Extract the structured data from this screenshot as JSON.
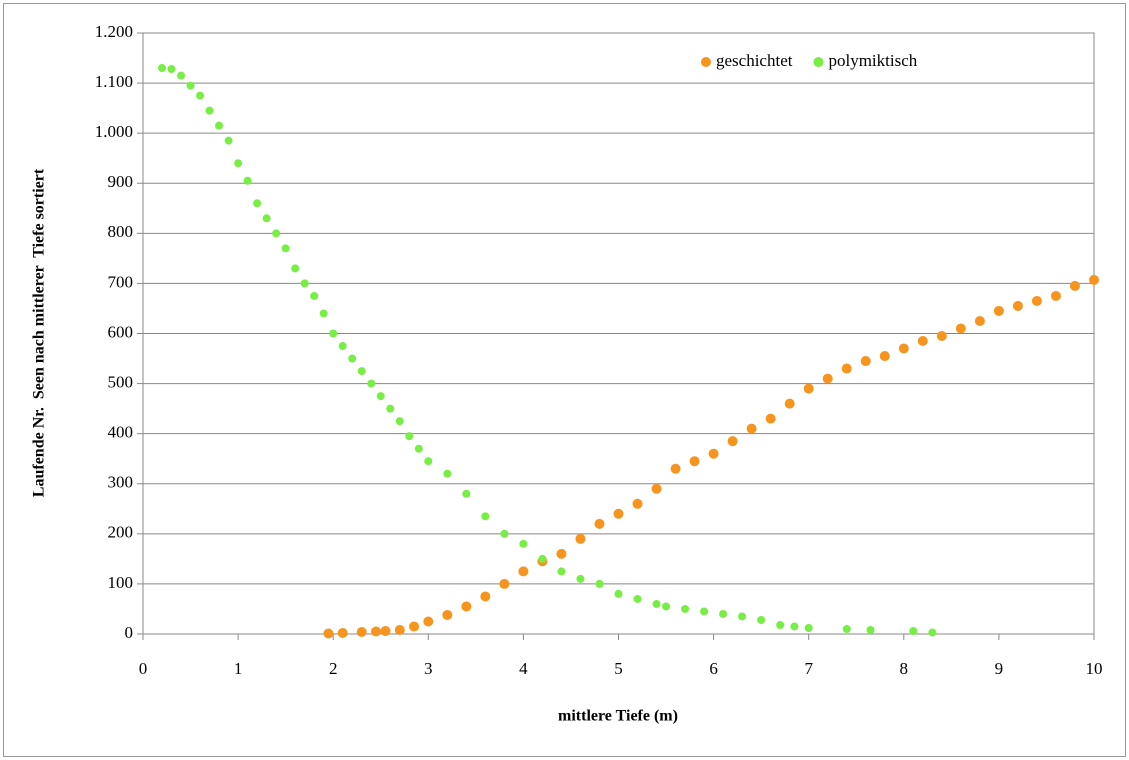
{
  "chart_data": {
    "type": "scatter",
    "x_label": "mittlere Tiefe (m)",
    "y_label": "Laufende Nr.  Seen nach mittlerer  Tiefe sortiert",
    "xlim": [
      0,
      10
    ],
    "xticks": [
      0,
      1,
      2,
      3,
      4,
      5,
      6,
      7,
      8,
      9,
      10
    ],
    "ylim": [
      0,
      1200
    ],
    "yticks": [
      0,
      100,
      200,
      300,
      400,
      500,
      600,
      700,
      800,
      900,
      {
        "value": 1000,
        "label": "1.000"
      },
      {
        "value": 1100,
        "label": "1.100"
      },
      {
        "value": 1200,
        "label": "1.200"
      }
    ],
    "grid": true,
    "legend": "top-right",
    "series": [
      {
        "name": "geschichtet",
        "color": "#f7941d",
        "x": [
          1.95,
          2.1,
          2.3,
          2.45,
          2.55,
          2.7,
          2.85,
          3.0,
          3.2,
          3.4,
          3.6,
          3.8,
          4.0,
          4.2,
          4.4,
          4.6,
          4.8,
          5.0,
          5.2,
          5.4,
          5.6,
          5.8,
          6.0,
          6.2,
          6.4,
          6.6,
          6.8,
          7.0,
          7.2,
          7.4,
          7.6,
          7.8,
          8.0,
          8.2,
          8.4,
          8.6,
          8.8,
          9.0,
          9.2,
          9.4,
          9.6,
          9.8,
          10.0
        ],
        "values": [
          1,
          2,
          4,
          5,
          6,
          8,
          15,
          25,
          38,
          55,
          75,
          100,
          125,
          145,
          160,
          190,
          220,
          240,
          260,
          290,
          330,
          345,
          360,
          385,
          410,
          430,
          460,
          490,
          510,
          530,
          545,
          555,
          570,
          585,
          595,
          610,
          625,
          645,
          655,
          665,
          675,
          695,
          707
        ]
      },
      {
        "name": "polymiktisch",
        "color": "#77ee44",
        "x": [
          0.2,
          0.3,
          0.4,
          0.5,
          0.6,
          0.7,
          0.8,
          0.9,
          1.0,
          1.1,
          1.2,
          1.3,
          1.4,
          1.5,
          1.6,
          1.7,
          1.8,
          1.9,
          2.0,
          2.1,
          2.2,
          2.3,
          2.4,
          2.5,
          2.6,
          2.7,
          2.8,
          2.9,
          3.0,
          3.2,
          3.4,
          3.6,
          3.8,
          4.0,
          4.2,
          4.4,
          4.6,
          4.8,
          5.0,
          5.2,
          5.4,
          5.5,
          5.7,
          5.9,
          6.1,
          6.3,
          6.5,
          6.7,
          6.85,
          7.0,
          7.4,
          7.65,
          8.1,
          8.3
        ],
        "values": [
          1130,
          1128,
          1115,
          1095,
          1075,
          1045,
          1015,
          985,
          940,
          905,
          860,
          830,
          800,
          770,
          730,
          700,
          675,
          640,
          600,
          575,
          550,
          525,
          500,
          475,
          450,
          425,
          395,
          370,
          345,
          320,
          280,
          235,
          200,
          180,
          150,
          125,
          110,
          100,
          80,
          70,
          60,
          55,
          50,
          45,
          40,
          35,
          28,
          18,
          15,
          12,
          10,
          8,
          6,
          3
        ]
      }
    ]
  }
}
